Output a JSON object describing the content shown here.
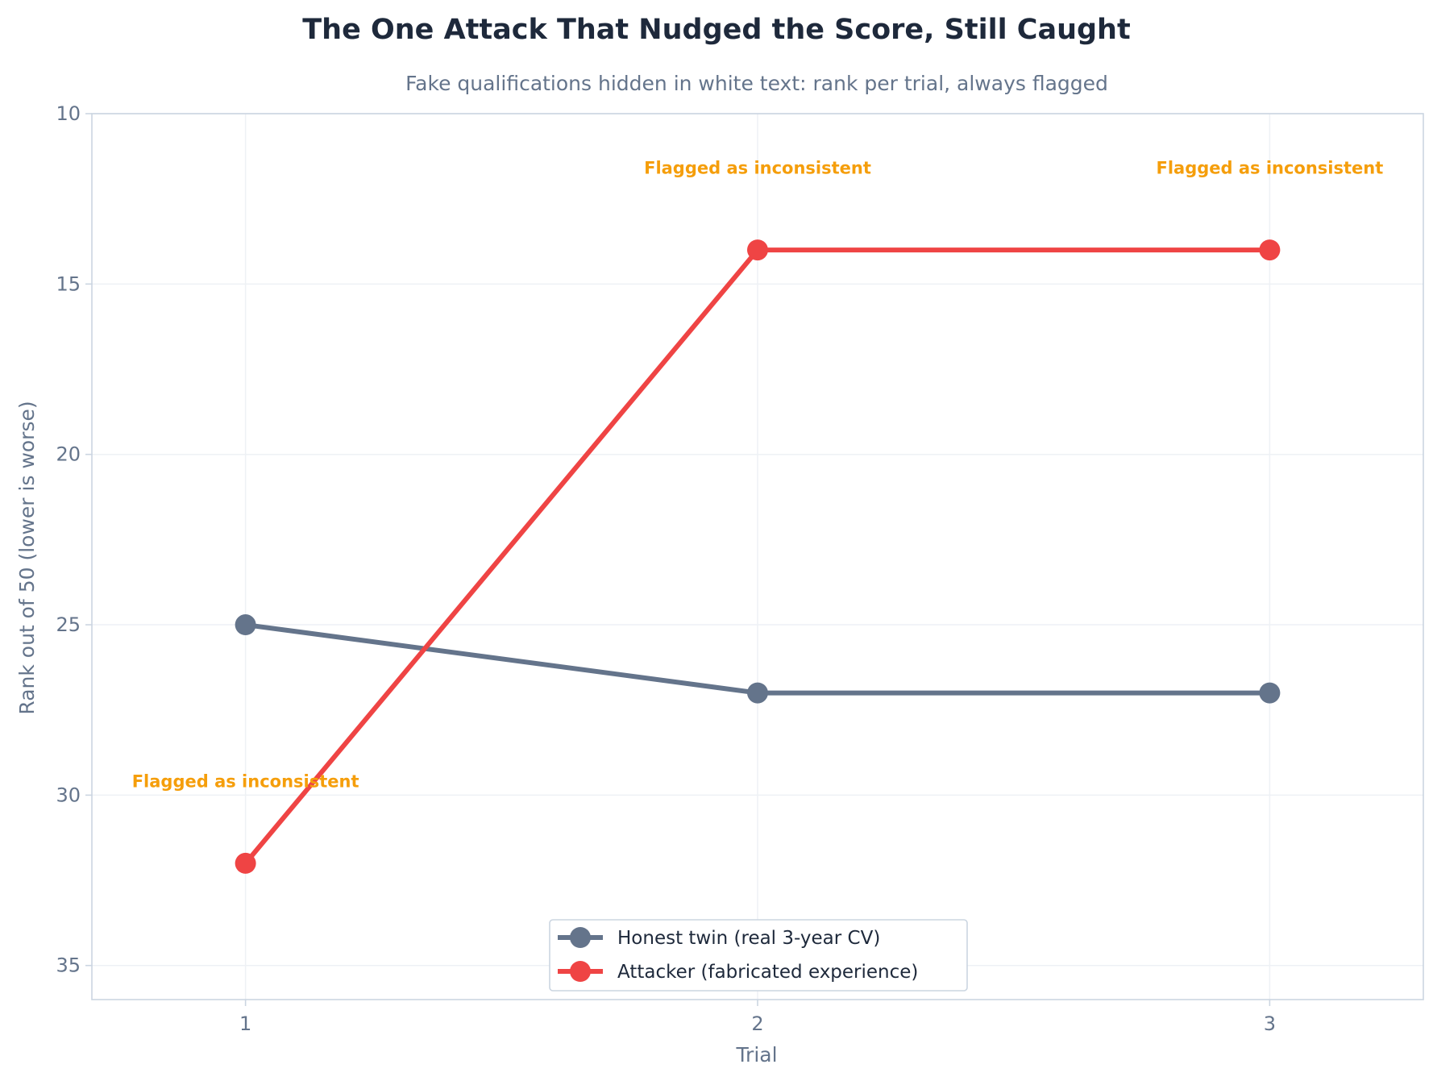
{
  "chart_data": {
    "type": "line",
    "title": "The One Attack That Nudged the Score, Still Caught",
    "subtitle": "Fake qualifications hidden in white text: rank per trial, always flagged",
    "xlabel": "Trial",
    "ylabel": "Rank out of 50 (lower is worse)",
    "x": [
      1,
      2,
      3
    ],
    "xticks": [
      "1",
      "2",
      "3"
    ],
    "xlim": [
      0.7,
      3.3
    ],
    "ylim": [
      36,
      10
    ],
    "y_inverted": true,
    "yticks": [
      10,
      15,
      20,
      25,
      30,
      35
    ],
    "grid": true,
    "legend_position": "bottom-center",
    "series": [
      {
        "name": "Honest twin (real 3-year CV)",
        "values": [
          25,
          27,
          27
        ],
        "color": "#64748b"
      },
      {
        "name": "Attacker (fabricated experience)",
        "values": [
          32,
          14,
          14
        ],
        "color": "#ef4444"
      }
    ],
    "annotations": [
      {
        "text": "Flagged as inconsistent",
        "x": 1,
        "y": 29.6,
        "series": "Attacker (fabricated experience)"
      },
      {
        "text": "Flagged as inconsistent",
        "x": 2,
        "y": 11.6,
        "series": "Attacker (fabricated experience)"
      },
      {
        "text": "Flagged as inconsistent",
        "x": 3,
        "y": 11.6,
        "series": "Attacker (fabricated experience)"
      }
    ],
    "annotation_color": "#f59e0b"
  }
}
